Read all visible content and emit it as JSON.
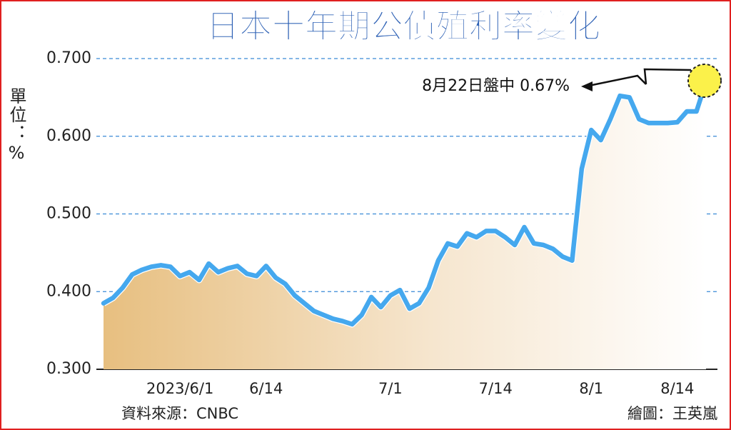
{
  "chart_data": {
    "type": "line",
    "title": "日本十年期公債殖利率變化",
    "y_label": "單位：%",
    "source": "資料來源：CNBC",
    "credit": "繪圖：王英嵐",
    "annotation": "8月22日盤中 0.67%",
    "categories": [
      null,
      null,
      null,
      null,
      null,
      null,
      null,
      null,
      "2023/6/1",
      null,
      null,
      null,
      null,
      null,
      null,
      null,
      null,
      "6/14",
      null,
      null,
      null,
      null,
      null,
      null,
      null,
      null,
      null,
      null,
      null,
      null,
      "7/1",
      null,
      null,
      null,
      null,
      null,
      null,
      null,
      null,
      null,
      null,
      "7/14",
      null,
      null,
      null,
      null,
      null,
      null,
      null,
      null,
      null,
      "8/1",
      null,
      null,
      null,
      null,
      null,
      null,
      null,
      null,
      "8/14",
      null,
      null,
      null
    ],
    "series": [
      {
        "color": "#45a8ee",
        "values": [
          0.385,
          0.392,
          0.405,
          0.422,
          0.428,
          0.432,
          0.434,
          0.432,
          0.42,
          0.425,
          0.415,
          0.436,
          0.425,
          0.43,
          0.433,
          0.423,
          0.42,
          0.433,
          0.418,
          0.41,
          0.395,
          0.385,
          0.375,
          0.37,
          0.365,
          0.362,
          0.358,
          0.37,
          0.393,
          0.38,
          0.395,
          0.402,
          0.378,
          0.385,
          0.405,
          0.44,
          0.462,
          0.458,
          0.475,
          0.47,
          0.478,
          0.478,
          0.47,
          0.46,
          0.483,
          0.462,
          0.46,
          0.455,
          0.445,
          0.44,
          0.558,
          0.608,
          0.595,
          0.622,
          0.652,
          0.65,
          0.622,
          0.617,
          0.617,
          0.617,
          0.618,
          0.632,
          0.632,
          0.67
        ]
      }
    ],
    "ylim": [
      0.3,
      0.7
    ],
    "yticks": [
      {
        "value": 0.3,
        "label": "0.300"
      },
      {
        "value": 0.4,
        "label": "0.400"
      },
      {
        "value": 0.5,
        "label": "0.500"
      },
      {
        "value": 0.6,
        "label": "0.600"
      },
      {
        "value": 0.7,
        "label": "0.700"
      }
    ],
    "grid": true
  }
}
